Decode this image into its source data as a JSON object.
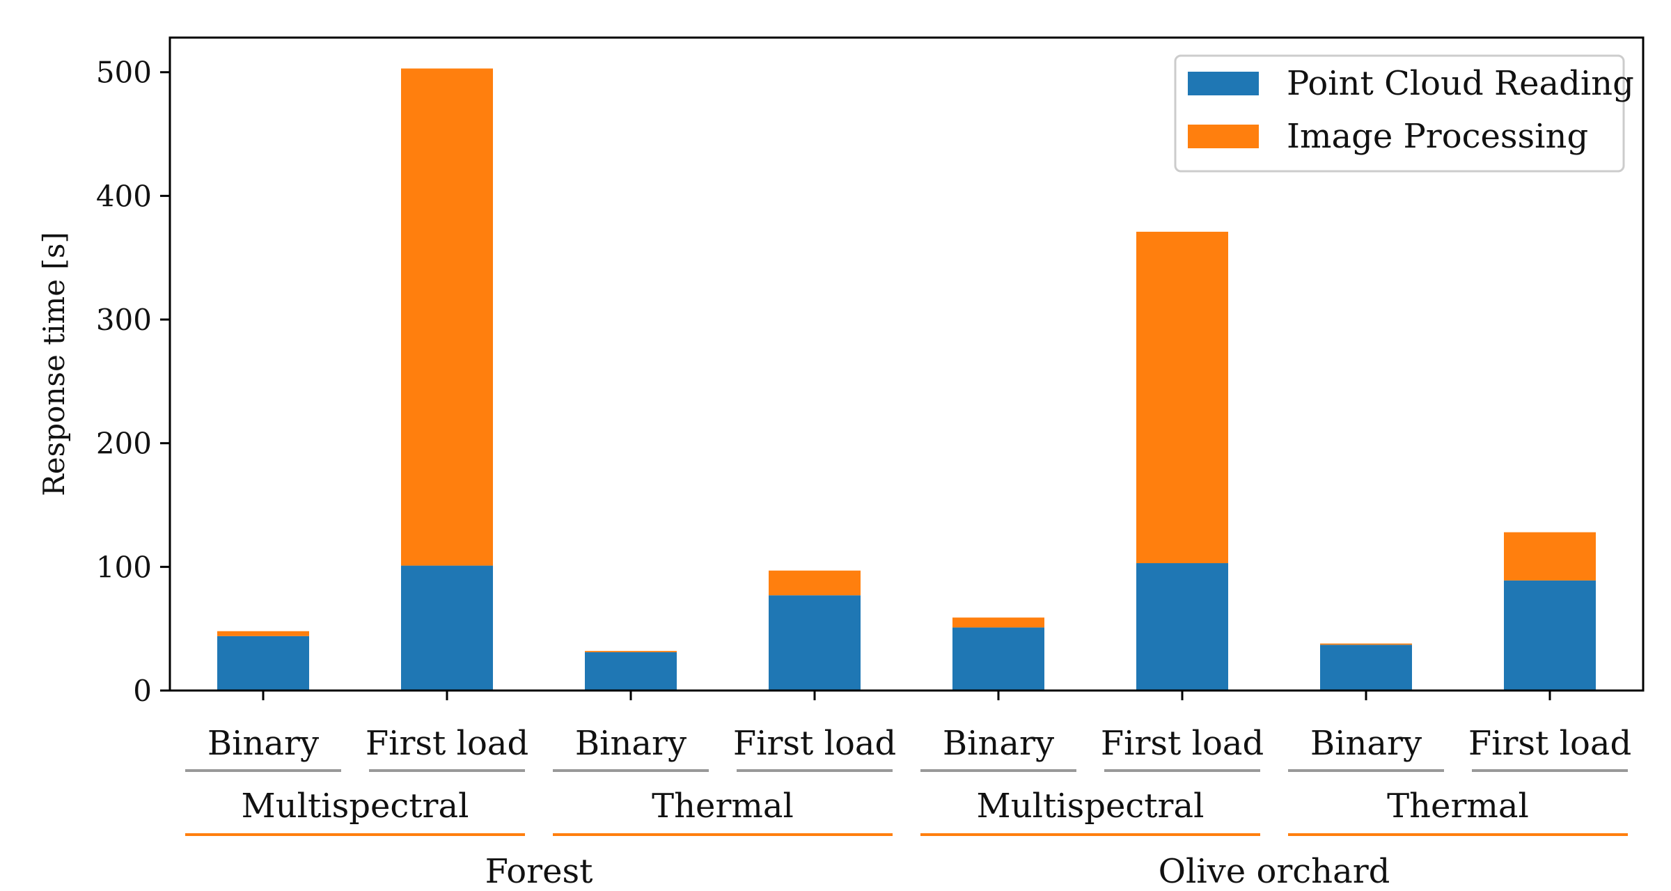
{
  "chart_data": {
    "type": "bar",
    "stacked": true,
    "ylabel": "Response time [s]",
    "ylim": [
      0,
      528
    ],
    "yticks": [
      0,
      100,
      200,
      300,
      400,
      500
    ],
    "grid": false,
    "legend_position": "top-right",
    "categories": [
      "Binary",
      "First load",
      "Binary",
      "First load",
      "Binary",
      "First load",
      "Binary",
      "First load"
    ],
    "sensor_groups": [
      "Multispectral",
      "Thermal",
      "Multispectral",
      "Thermal"
    ],
    "sites": [
      "Forest",
      "Olive orchard"
    ],
    "series": [
      {
        "name": "Point Cloud Reading",
        "color": "#1f77b4",
        "values": [
          44,
          101,
          31,
          77,
          51,
          103,
          37,
          89
        ]
      },
      {
        "name": "Image Processing",
        "color": "#ff7f0e",
        "values": [
          4,
          402,
          1,
          20,
          8,
          268,
          1,
          39
        ]
      }
    ],
    "separator_colors": {
      "category": "#999999",
      "group": "#ff7f0e"
    }
  }
}
